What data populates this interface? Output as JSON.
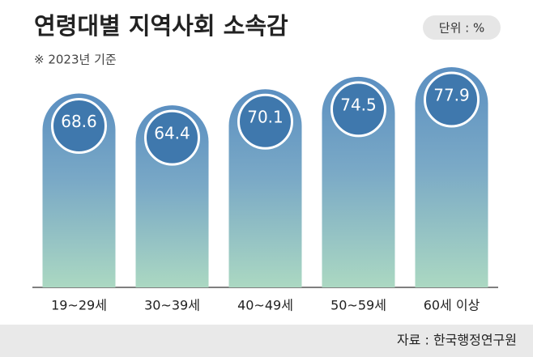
{
  "chart_data": {
    "type": "bar",
    "title": "연령대별 지역사회 소속감",
    "unit": "단위 : %",
    "subtitle": "※ 2023년 기준",
    "source": "자료 : 한국행정연구원",
    "categories": [
      "19~29세",
      "30~39세",
      "40~49세",
      "50~59세",
      "60세 이상"
    ],
    "values": [
      68.6,
      64.4,
      70.1,
      74.5,
      77.9
    ],
    "color": "#5b8fc1"
  }
}
